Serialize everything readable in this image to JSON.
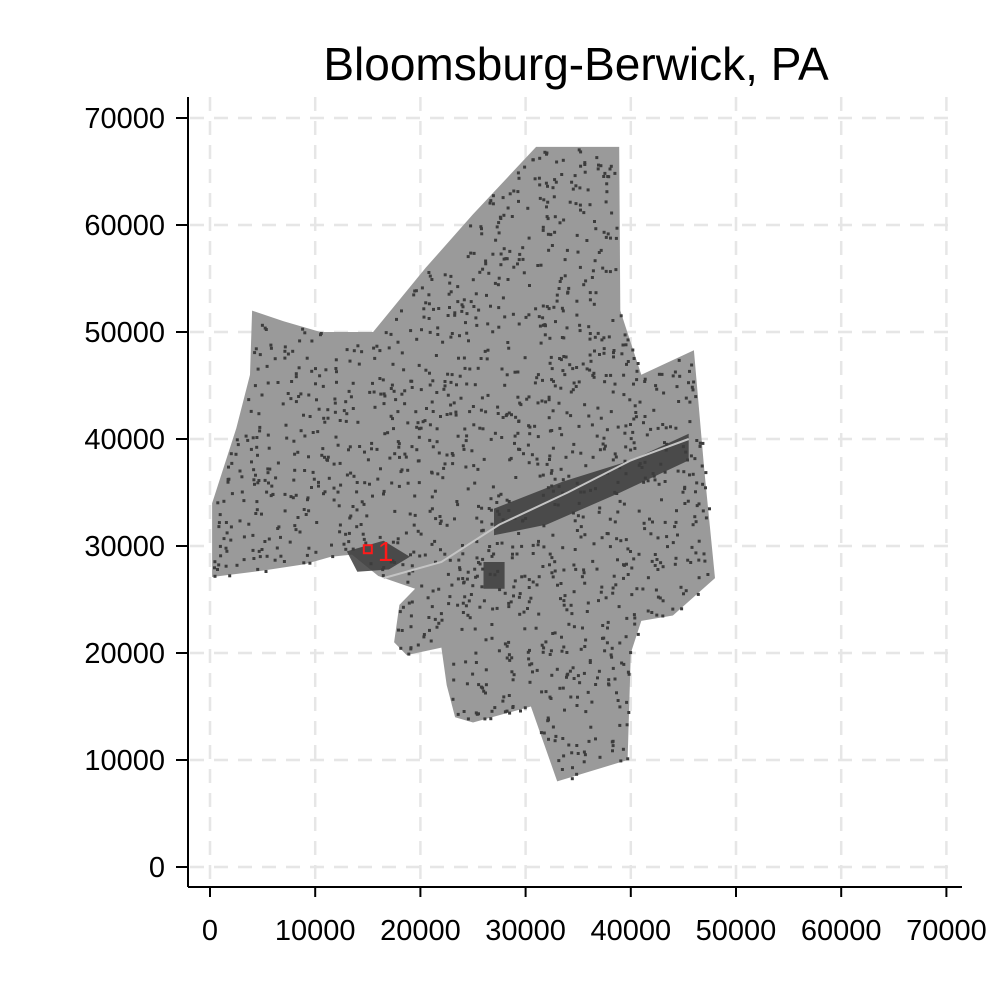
{
  "chart_data": {
    "type": "map",
    "title": "Bloomsburg-Berwick, PA",
    "xlabel": "",
    "ylabel": "",
    "xlim": [
      0,
      70000
    ],
    "ylim": [
      0,
      70000
    ],
    "x_ticks": [
      "0",
      "10000",
      "20000",
      "30000",
      "40000",
      "50000",
      "60000",
      "70000"
    ],
    "y_ticks": [
      "0",
      "10000",
      "20000",
      "30000",
      "40000",
      "50000",
      "60000",
      "70000"
    ],
    "grid": true,
    "region_outline": [
      [
        38900,
        67300
      ],
      [
        31000,
        67300
      ],
      [
        25000,
        61000
      ],
      [
        20500,
        56000
      ],
      [
        15500,
        50000
      ],
      [
        10500,
        50000
      ],
      [
        7000,
        51000
      ],
      [
        4000,
        52000
      ],
      [
        3800,
        46000
      ],
      [
        2500,
        41000
      ],
      [
        200,
        34000
      ],
      [
        200,
        27100
      ],
      [
        5000,
        27700
      ],
      [
        9000,
        28300
      ],
      [
        11500,
        29000
      ],
      [
        13500,
        29200
      ],
      [
        16000,
        27200
      ],
      [
        19500,
        26000
      ],
      [
        18000,
        24500
      ],
      [
        17500,
        21000
      ],
      [
        18700,
        19800
      ],
      [
        22000,
        20500
      ],
      [
        22500,
        17000
      ],
      [
        23300,
        14000
      ],
      [
        25000,
        13500
      ],
      [
        30500,
        15000
      ],
      [
        33000,
        8000
      ],
      [
        39700,
        10000
      ],
      [
        40000,
        20000
      ],
      [
        41000,
        23000
      ],
      [
        44000,
        23500
      ],
      [
        48000,
        27000
      ],
      [
        47000,
        37000
      ],
      [
        46000,
        48300
      ],
      [
        41000,
        46000
      ],
      [
        39000,
        52000
      ]
    ],
    "region_color": "#9a9a9a",
    "dense_color": "#3c3c3c",
    "markers": [
      {
        "label": "1",
        "x": 15000,
        "y": 29700,
        "color": "#ff1a1a"
      }
    ]
  }
}
